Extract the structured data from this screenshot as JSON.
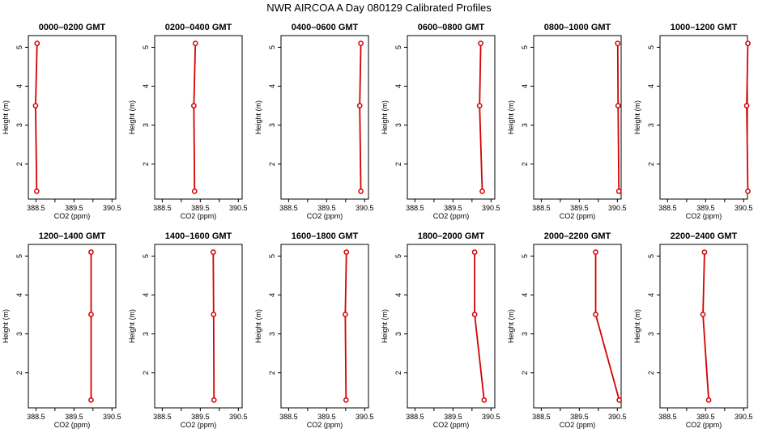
{
  "title": "NWR AIRCOA A  Day 080129  Calibrated Profiles",
  "chart_data": {
    "type": "line",
    "xlabel": "CO2 (ppm)",
    "ylabel": "Height (m)",
    "xlim": [
      388.3,
      390.6
    ],
    "ylim": [
      1.1,
      5.3
    ],
    "xticks": [
      "388.5",
      "389.5",
      "390.5"
    ],
    "xtick_values": [
      388.5,
      389.0,
      389.5,
      390.0,
      390.5
    ],
    "yticks": [
      "2",
      "3",
      "4",
      "5"
    ],
    "ytick_values": [
      2,
      3,
      4,
      5
    ],
    "heights": [
      1.3,
      3.5,
      5.1
    ],
    "panels": [
      {
        "title": "0000–0200 GMT",
        "x": [
          388.52,
          388.49,
          388.53
        ]
      },
      {
        "title": "0200–0400 GMT",
        "x": [
          389.35,
          389.33,
          389.37
        ]
      },
      {
        "title": "0400–0600 GMT",
        "x": [
          390.4,
          390.37,
          390.4
        ]
      },
      {
        "title": "0600–0800 GMT",
        "x": [
          390.27,
          390.2,
          390.23
        ]
      },
      {
        "title": "0800–1000 GMT",
        "x": [
          390.54,
          390.52,
          390.51
        ]
      },
      {
        "title": "1000–1200 GMT",
        "x": [
          390.61,
          390.58,
          390.61
        ]
      },
      {
        "title": "1200–1400 GMT",
        "x": [
          389.95,
          389.95,
          389.95
        ]
      },
      {
        "title": "1400–1600 GMT",
        "x": [
          389.86,
          389.85,
          389.84
        ]
      },
      {
        "title": "1600–1800 GMT",
        "x": [
          390.01,
          389.99,
          390.02
        ]
      },
      {
        "title": "1800–2000 GMT",
        "x": [
          390.32,
          390.07,
          390.07
        ]
      },
      {
        "title": "2000–2200 GMT",
        "x": [
          390.55,
          389.93,
          389.93
        ]
      },
      {
        "title": "2200–2400 GMT",
        "x": [
          389.58,
          389.43,
          389.47
        ]
      }
    ]
  }
}
